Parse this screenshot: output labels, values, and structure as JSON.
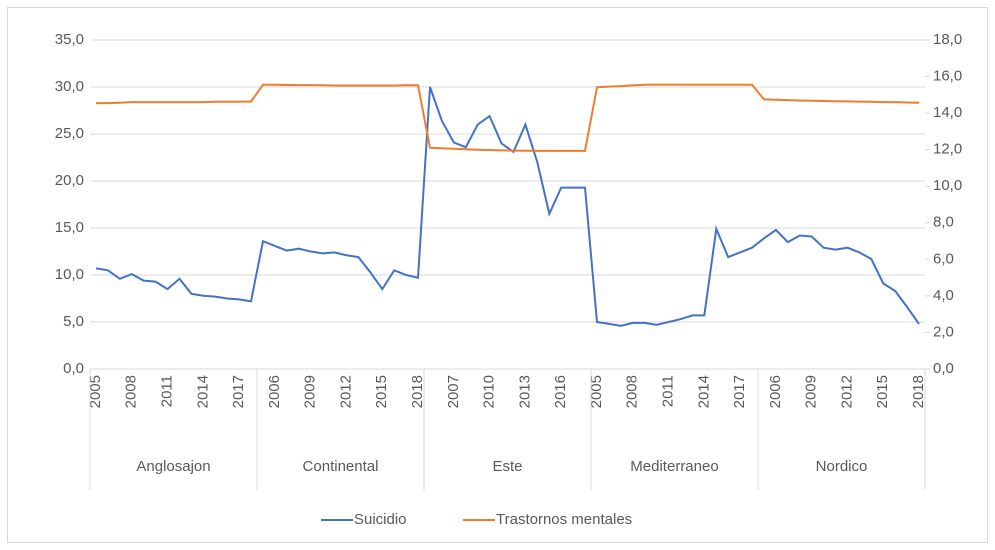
{
  "chart_data": {
    "type": "line",
    "categories": [
      "2005",
      null,
      null,
      "2008",
      null,
      null,
      "2011",
      null,
      null,
      "2014",
      null,
      null,
      "2017",
      null,
      null,
      "2006",
      null,
      null,
      "2009",
      null,
      null,
      "2012",
      null,
      null,
      "2015",
      null,
      null,
      "2018",
      null,
      null,
      "2007",
      null,
      null,
      "2010",
      null,
      null,
      "2013",
      null,
      null,
      "2016",
      null,
      null,
      "2005",
      null,
      null,
      "2008",
      null,
      null,
      "2011",
      null,
      null,
      "2014",
      null,
      null,
      "2017",
      null,
      null,
      "2006",
      null,
      null,
      "2009",
      null,
      null,
      "2012",
      null,
      null,
      "2015",
      null,
      null,
      "2018"
    ],
    "groups": [
      {
        "name": "Anglosajon",
        "size": 14
      },
      {
        "name": "Continental",
        "size": 14
      },
      {
        "name": "Este",
        "size": 14
      },
      {
        "name": "Mediterraneo",
        "size": 14
      },
      {
        "name": "Nordico",
        "size": 14
      }
    ],
    "series": [
      {
        "name": "Suicidio",
        "color": "#4472c4",
        "axis": "y",
        "values": [
          10.7,
          10.5,
          9.6,
          10.1,
          9.4,
          9.3,
          8.5,
          9.6,
          8.0,
          7.8,
          7.7,
          7.5,
          7.4,
          7.2,
          13.6,
          13.1,
          12.6,
          12.8,
          12.5,
          12.3,
          12.4,
          12.1,
          11.9,
          10.3,
          8.5,
          10.5,
          10.0,
          9.7,
          30.0,
          26.4,
          24.1,
          23.6,
          26.0,
          26.9,
          24.0,
          23.1,
          26.0,
          22.0,
          16.5,
          19.3,
          19.3,
          19.3,
          5.0,
          4.8,
          4.6,
          4.9,
          4.9,
          4.7,
          5.0,
          5.3,
          5.7,
          5.7,
          14.9,
          11.9,
          12.4,
          12.9,
          13.9,
          14.8,
          13.5,
          14.2,
          14.1,
          12.9,
          12.7,
          12.9,
          12.4,
          11.7,
          9.1,
          8.3,
          6.6,
          4.8
        ]
      },
      {
        "name": "Trastornos mentales",
        "color": "#ed7d31",
        "axis": "y2",
        "values": [
          14.55,
          14.55,
          14.57,
          14.6,
          14.6,
          14.6,
          14.6,
          14.6,
          14.6,
          14.6,
          14.62,
          14.62,
          14.63,
          14.63,
          15.55,
          15.55,
          15.54,
          15.53,
          15.53,
          15.52,
          15.51,
          15.51,
          15.51,
          15.51,
          15.51,
          15.51,
          15.52,
          15.52,
          12.1,
          12.08,
          12.05,
          12.02,
          12.0,
          11.98,
          11.96,
          11.95,
          11.94,
          11.93,
          11.93,
          11.93,
          11.93,
          11.93,
          15.42,
          15.45,
          15.48,
          15.52,
          15.55,
          15.56,
          15.56,
          15.56,
          15.55,
          15.55,
          15.55,
          15.55,
          15.55,
          15.55,
          14.75,
          14.73,
          14.71,
          14.69,
          14.68,
          14.66,
          14.65,
          14.64,
          14.63,
          14.62,
          14.6,
          14.6,
          14.58,
          14.57
        ]
      }
    ],
    "ylim": [
      0,
      35
    ],
    "yticks": [
      {
        "value": 0,
        "label": "0,0"
      },
      {
        "value": 5,
        "label": "5,0"
      },
      {
        "value": 10,
        "label": "10,0"
      },
      {
        "value": 15,
        "label": "15,0"
      },
      {
        "value": 20,
        "label": "20,0"
      },
      {
        "value": 25,
        "label": "25,0"
      },
      {
        "value": 30,
        "label": "30,0"
      },
      {
        "value": 35,
        "label": "35,0"
      }
    ],
    "y2lim": [
      0,
      18
    ],
    "y2ticks": [
      {
        "value": 0,
        "label": "0,0"
      },
      {
        "value": 2,
        "label": "2,0"
      },
      {
        "value": 4,
        "label": "4,0"
      },
      {
        "value": 6,
        "label": "6,0"
      },
      {
        "value": 8,
        "label": "8,0"
      },
      {
        "value": 10,
        "label": "10,0"
      },
      {
        "value": 12,
        "label": "12,0"
      },
      {
        "value": 14,
        "label": "14,0"
      },
      {
        "value": 16,
        "label": "16,0"
      },
      {
        "value": 18,
        "label": "18,0"
      }
    ],
    "grid": true,
    "legend": "bottom"
  }
}
